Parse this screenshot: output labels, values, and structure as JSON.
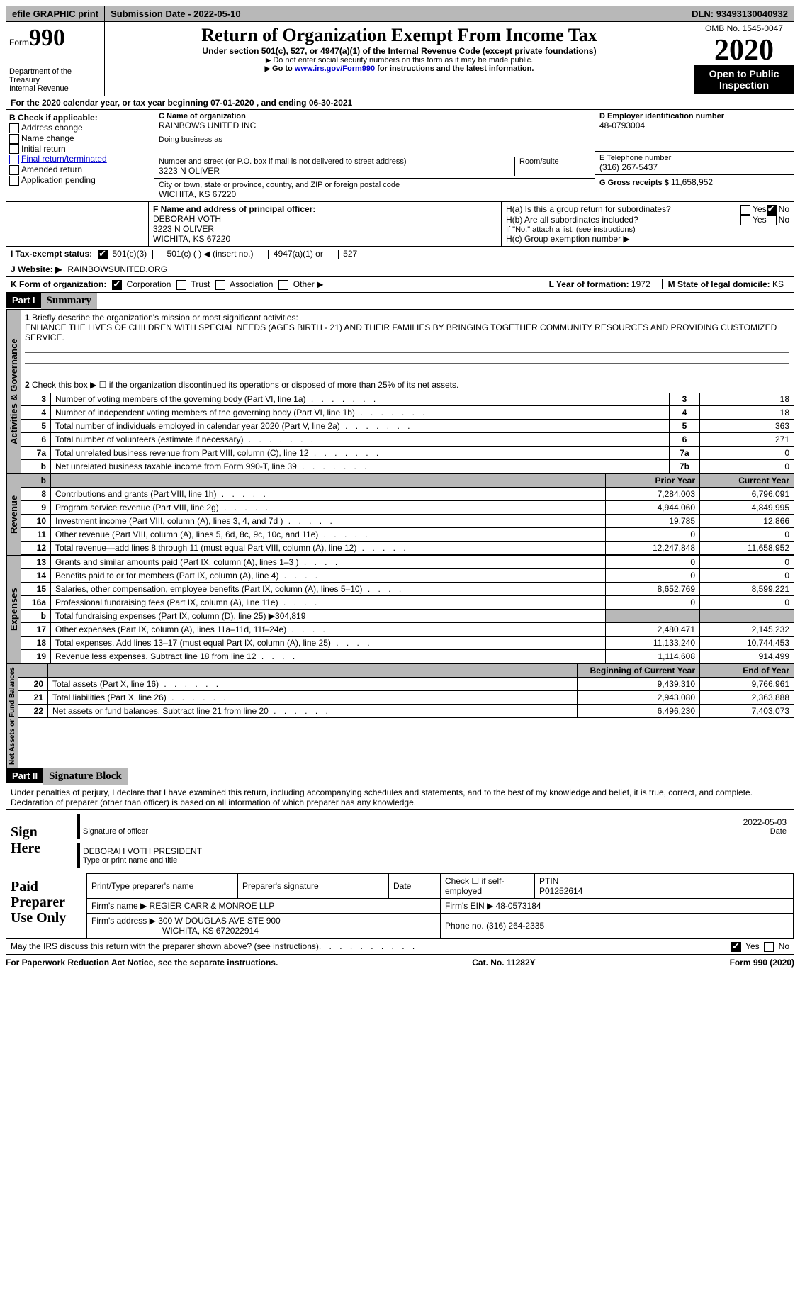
{
  "topbar": {
    "efile": "efile GRAPHIC print",
    "submission_label": "Submission Date - ",
    "submission_date": "2022-05-10",
    "dln_label": "DLN: ",
    "dln": "93493130040932"
  },
  "header": {
    "form_prefix": "Form",
    "form_no": "990",
    "dept1": "Department of the Treasury",
    "dept2": "Internal Revenue",
    "title": "Return of Organization Exempt From Income Tax",
    "subtitle": "Under section 501(c), 527, or 4947(a)(1) of the Internal Revenue Code (except private foundations)",
    "note1_pre": "Do not enter social security numbers on this form as it may be made public.",
    "note2_pre": "Go to ",
    "note2_link": "www.irs.gov/Form990",
    "note2_post": " for instructions and the latest information.",
    "omb": "OMB No. 1545-0047",
    "year": "2020",
    "inspection1": "Open to Public",
    "inspection2": "Inspection"
  },
  "rowA": {
    "pre": "A",
    "text": "For the 2020 calendar year, or tax year beginning 07-01-2020    , and ending 06-30-2021"
  },
  "boxB": {
    "heading": "B Check if applicable:",
    "opts": [
      "Address change",
      "Name change",
      "Initial return",
      "Final return/terminated",
      "Amended return",
      "Application pending"
    ]
  },
  "boxC": {
    "name_lbl": "C Name of organization",
    "name": "RAINBOWS UNITED INC",
    "dba_lbl": "Doing business as",
    "street_lbl": "Number and street (or P.O. box if mail is not delivered to street address)",
    "room_lbl": "Room/suite",
    "street": "3223 N OLIVER",
    "city_lbl": "City or town, state or province, country, and ZIP or foreign postal code",
    "city": "WICHITA, KS  67220"
  },
  "boxD": {
    "ein_lbl": "D Employer identification number",
    "ein": "48-0793004",
    "tel_lbl": "E Telephone number",
    "tel": "(316) 267-5437",
    "gross_lbl": "G Gross receipts $ ",
    "gross": "11,658,952"
  },
  "boxF": {
    "lbl": "F  Name and address of principal officer:",
    "name": "DEBORAH VOTH",
    "addr1": "3223 N OLIVER",
    "addr2": "WICHITA, KS  67220"
  },
  "boxH": {
    "ha": "H(a)  Is this a group return for subordinates?",
    "hb": "H(b)  Are all subordinates included?",
    "hb_note": "If \"No,\" attach a list. (see instructions)",
    "hc": "H(c)  Group exemption number ▶",
    "yes": "Yes",
    "no": "No"
  },
  "rowI": {
    "lbl": "I    Tax-exempt status:",
    "c3": "501(c)(3)",
    "c": "501(c) (   ) ◀ (insert no.)",
    "a1": "4947(a)(1) or",
    "s527": "527"
  },
  "rowJ": {
    "lbl": "J   Website: ▶",
    "val": "RAINBOWSUNITED.ORG"
  },
  "rowK": {
    "lbl": "K Form of organization:",
    "corp": "Corporation",
    "trust": "Trust",
    "assoc": "Association",
    "other": "Other ▶",
    "year_lbl": "L Year of formation: ",
    "year": "1972",
    "state_lbl": "M State of legal domicile: ",
    "state": "KS"
  },
  "part1": {
    "hdr": "Part I",
    "title": "Summary"
  },
  "governance": {
    "side": "Activities & Governance",
    "l1_lbl": "Briefly describe the organization's mission or most significant activities:",
    "l1_text": "ENHANCE THE LIVES OF CHILDREN WITH SPECIAL NEEDS (AGES BIRTH - 21) AND THEIR FAMILIES BY BRINGING TOGETHER COMMUNITY RESOURCES AND PROVIDING CUSTOMIZED SERVICE.",
    "l2": "Check this box ▶ ☐  if the organization discontinued its operations or disposed of more than 25% of its net assets.",
    "rows": [
      {
        "n": "3",
        "t": "Number of voting members of the governing body (Part VI, line 1a)",
        "b": "3",
        "v": "18"
      },
      {
        "n": "4",
        "t": "Number of independent voting members of the governing body (Part VI, line 1b)",
        "b": "4",
        "v": "18"
      },
      {
        "n": "5",
        "t": "Total number of individuals employed in calendar year 2020 (Part V, line 2a)",
        "b": "5",
        "v": "363"
      },
      {
        "n": "6",
        "t": "Total number of volunteers (estimate if necessary)",
        "b": "6",
        "v": "271"
      },
      {
        "n": "7a",
        "t": "Total unrelated business revenue from Part VIII, column (C), line 12",
        "b": "7a",
        "v": "0"
      },
      {
        "n": " b",
        "t": "Net unrelated business taxable income from Form 990-T, line 39",
        "b": "7b",
        "v": "0"
      }
    ]
  },
  "revexp": {
    "prior_hdr": "Prior Year",
    "curr_hdr": "Current Year",
    "rev_side": "Revenue",
    "exp_side": "Expenses",
    "net_side": "Net Assets or Fund Balances",
    "rev": [
      {
        "n": "8",
        "t": "Contributions and grants (Part VIII, line 1h)",
        "p": "7,284,003",
        "c": "6,796,091"
      },
      {
        "n": "9",
        "t": "Program service revenue (Part VIII, line 2g)",
        "p": "4,944,060",
        "c": "4,849,995"
      },
      {
        "n": "10",
        "t": "Investment income (Part VIII, column (A), lines 3, 4, and 7d )",
        "p": "19,785",
        "c": "12,866"
      },
      {
        "n": "11",
        "t": "Other revenue (Part VIII, column (A), lines 5, 6d, 8c, 9c, 10c, and 11e)",
        "p": "0",
        "c": "0"
      },
      {
        "n": "12",
        "t": "Total revenue—add lines 8 through 11 (must equal Part VIII, column (A), line 12)",
        "p": "12,247,848",
        "c": "11,658,952"
      }
    ],
    "exp": [
      {
        "n": "13",
        "t": "Grants and similar amounts paid (Part IX, column (A), lines 1–3 )",
        "p": "0",
        "c": "0"
      },
      {
        "n": "14",
        "t": "Benefits paid to or for members (Part IX, column (A), line 4)",
        "p": "0",
        "c": "0"
      },
      {
        "n": "15",
        "t": "Salaries, other compensation, employee benefits (Part IX, column (A), lines 5–10)",
        "p": "8,652,769",
        "c": "8,599,221"
      },
      {
        "n": "16a",
        "t": "Professional fundraising fees (Part IX, column (A), line 11e)",
        "p": "0",
        "c": "0"
      },
      {
        "n": "b",
        "t": "Total fundraising expenses (Part IX, column (D), line 25) ▶304,819",
        "p": "",
        "c": "",
        "grey": true
      },
      {
        "n": "17",
        "t": "Other expenses (Part IX, column (A), lines 11a–11d, 11f–24e)",
        "p": "2,480,471",
        "c": "2,145,232"
      },
      {
        "n": "18",
        "t": "Total expenses. Add lines 13–17 (must equal Part IX, column (A), line 25)",
        "p": "11,133,240",
        "c": "10,744,453"
      },
      {
        "n": "19",
        "t": "Revenue less expenses. Subtract line 18 from line 12",
        "p": "1,114,608",
        "c": "914,499"
      }
    ],
    "boy_hdr": "Beginning of Current Year",
    "eoy_hdr": "End of Year",
    "net": [
      {
        "n": "20",
        "t": "Total assets (Part X, line 16)",
        "p": "9,439,310",
        "c": "9,766,961"
      },
      {
        "n": "21",
        "t": "Total liabilities (Part X, line 26)",
        "p": "2,943,080",
        "c": "2,363,888"
      },
      {
        "n": "22",
        "t": "Net assets or fund balances. Subtract line 21 from line 20",
        "p": "6,496,230",
        "c": "7,403,073"
      }
    ]
  },
  "part2": {
    "hdr": "Part II",
    "title": "Signature Block"
  },
  "declaration": "Under penalties of perjury, I declare that I have examined this return, including accompanying schedules and statements, and to the best of my knowledge and belief, it is true, correct, and complete. Declaration of preparer (other than officer) is based on all information of which preparer has any knowledge.",
  "sign": {
    "here": "Sign Here",
    "date": "2022-05-03",
    "sig_lbl": "Signature of officer",
    "date_lbl": "Date",
    "name": "DEBORAH VOTH  PRESIDENT",
    "name_lbl": "Type or print name and title"
  },
  "preparer": {
    "left": "Paid Preparer Use Only",
    "print_lbl": "Print/Type preparer's name",
    "sig_lbl": "Preparer's signature",
    "date_lbl": "Date",
    "check_lbl": "Check ☐  if self-employed",
    "ptin_lbl": "PTIN",
    "ptin": "P01252614",
    "firm_name_lbl": "Firm's name    ▶ ",
    "firm_name": "REGIER CARR & MONROE LLP",
    "firm_ein_lbl": "Firm's EIN ▶ ",
    "firm_ein": "48-0573184",
    "firm_addr_lbl": "Firm's address ▶ ",
    "firm_addr": "300 W DOUGLAS AVE STE 900",
    "firm_city": "WICHITA, KS  672022914",
    "phone_lbl": "Phone no. ",
    "phone": "(316) 264-2335"
  },
  "discuss": {
    "text": "May the IRS discuss this return with the preparer shown above? (see instructions)",
    "yes": "Yes",
    "no": "No"
  },
  "footer": {
    "left": "For Paperwork Reduction Act Notice, see the separate instructions.",
    "mid": "Cat. No. 11282Y",
    "right": "Form 990 (2020)"
  }
}
